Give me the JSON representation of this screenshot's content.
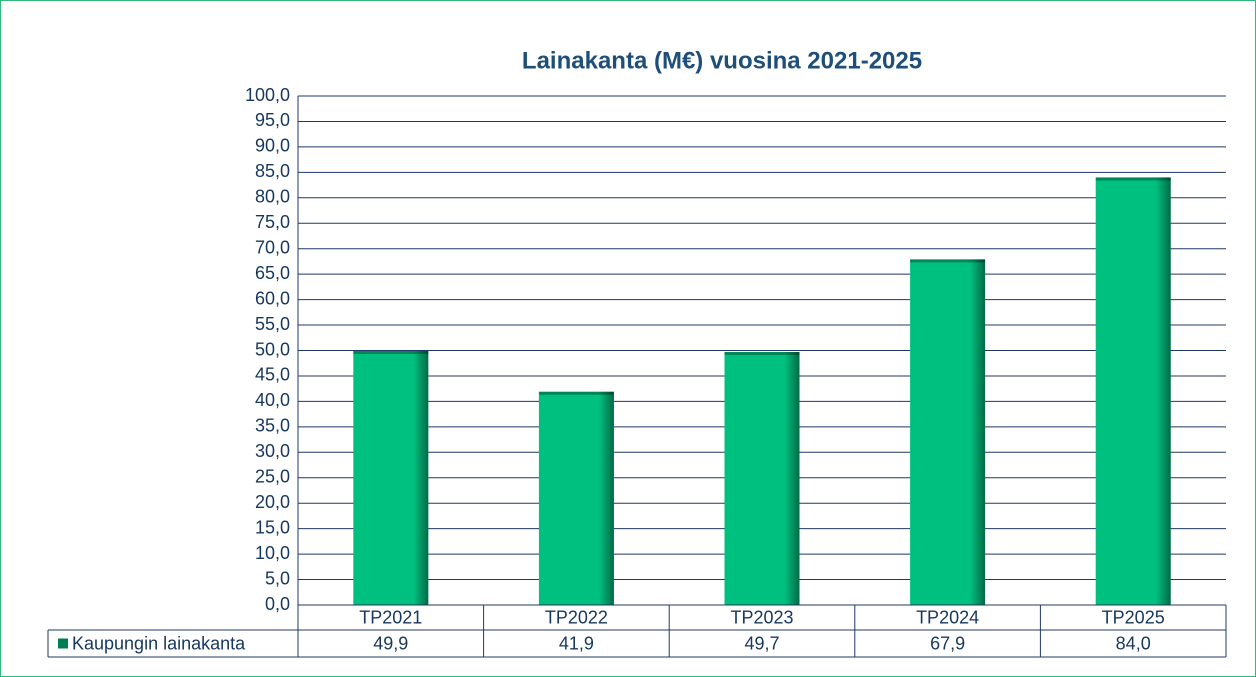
{
  "chart_data": {
    "type": "bar",
    "title": "Lainakanta (M€) vuosina 2021-2025",
    "categories": [
      "TP2021",
      "TP2022",
      "TP2023",
      "TP2024",
      "TP2025"
    ],
    "series": [
      {
        "name": "Kaupungin lainakanta",
        "color": "#00c080",
        "values": [
          49.9,
          41.9,
          49.7,
          67.9,
          84.0
        ],
        "value_labels": [
          "49,9",
          "41,9",
          "49,7",
          "67,9",
          "84,0"
        ]
      }
    ],
    "ylim": [
      0,
      100
    ],
    "yticks": [
      {
        "value": 0,
        "label": "0,0"
      },
      {
        "value": 5,
        "label": "5,0"
      },
      {
        "value": 10,
        "label": "10,0"
      },
      {
        "value": 15,
        "label": "15,0"
      },
      {
        "value": 20,
        "label": "20,0"
      },
      {
        "value": 25,
        "label": "25,0"
      },
      {
        "value": 30,
        "label": "30,0"
      },
      {
        "value": 35,
        "label": "35,0"
      },
      {
        "value": 40,
        "label": "40,0"
      },
      {
        "value": 45,
        "label": "45,0"
      },
      {
        "value": 50,
        "label": "50,0"
      },
      {
        "value": 55,
        "label": "55,0"
      },
      {
        "value": 60,
        "label": "60,0"
      },
      {
        "value": 65,
        "label": "65,0"
      },
      {
        "value": 70,
        "label": "70,0"
      },
      {
        "value": 75,
        "label": "75,0"
      },
      {
        "value": 80,
        "label": "80,0"
      },
      {
        "value": 85,
        "label": "85,0"
      },
      {
        "value": 90,
        "label": "90,0"
      },
      {
        "value": 95,
        "label": "95,0"
      },
      {
        "value": 100,
        "label": "100,0"
      }
    ],
    "grid": true,
    "legend": "table"
  }
}
